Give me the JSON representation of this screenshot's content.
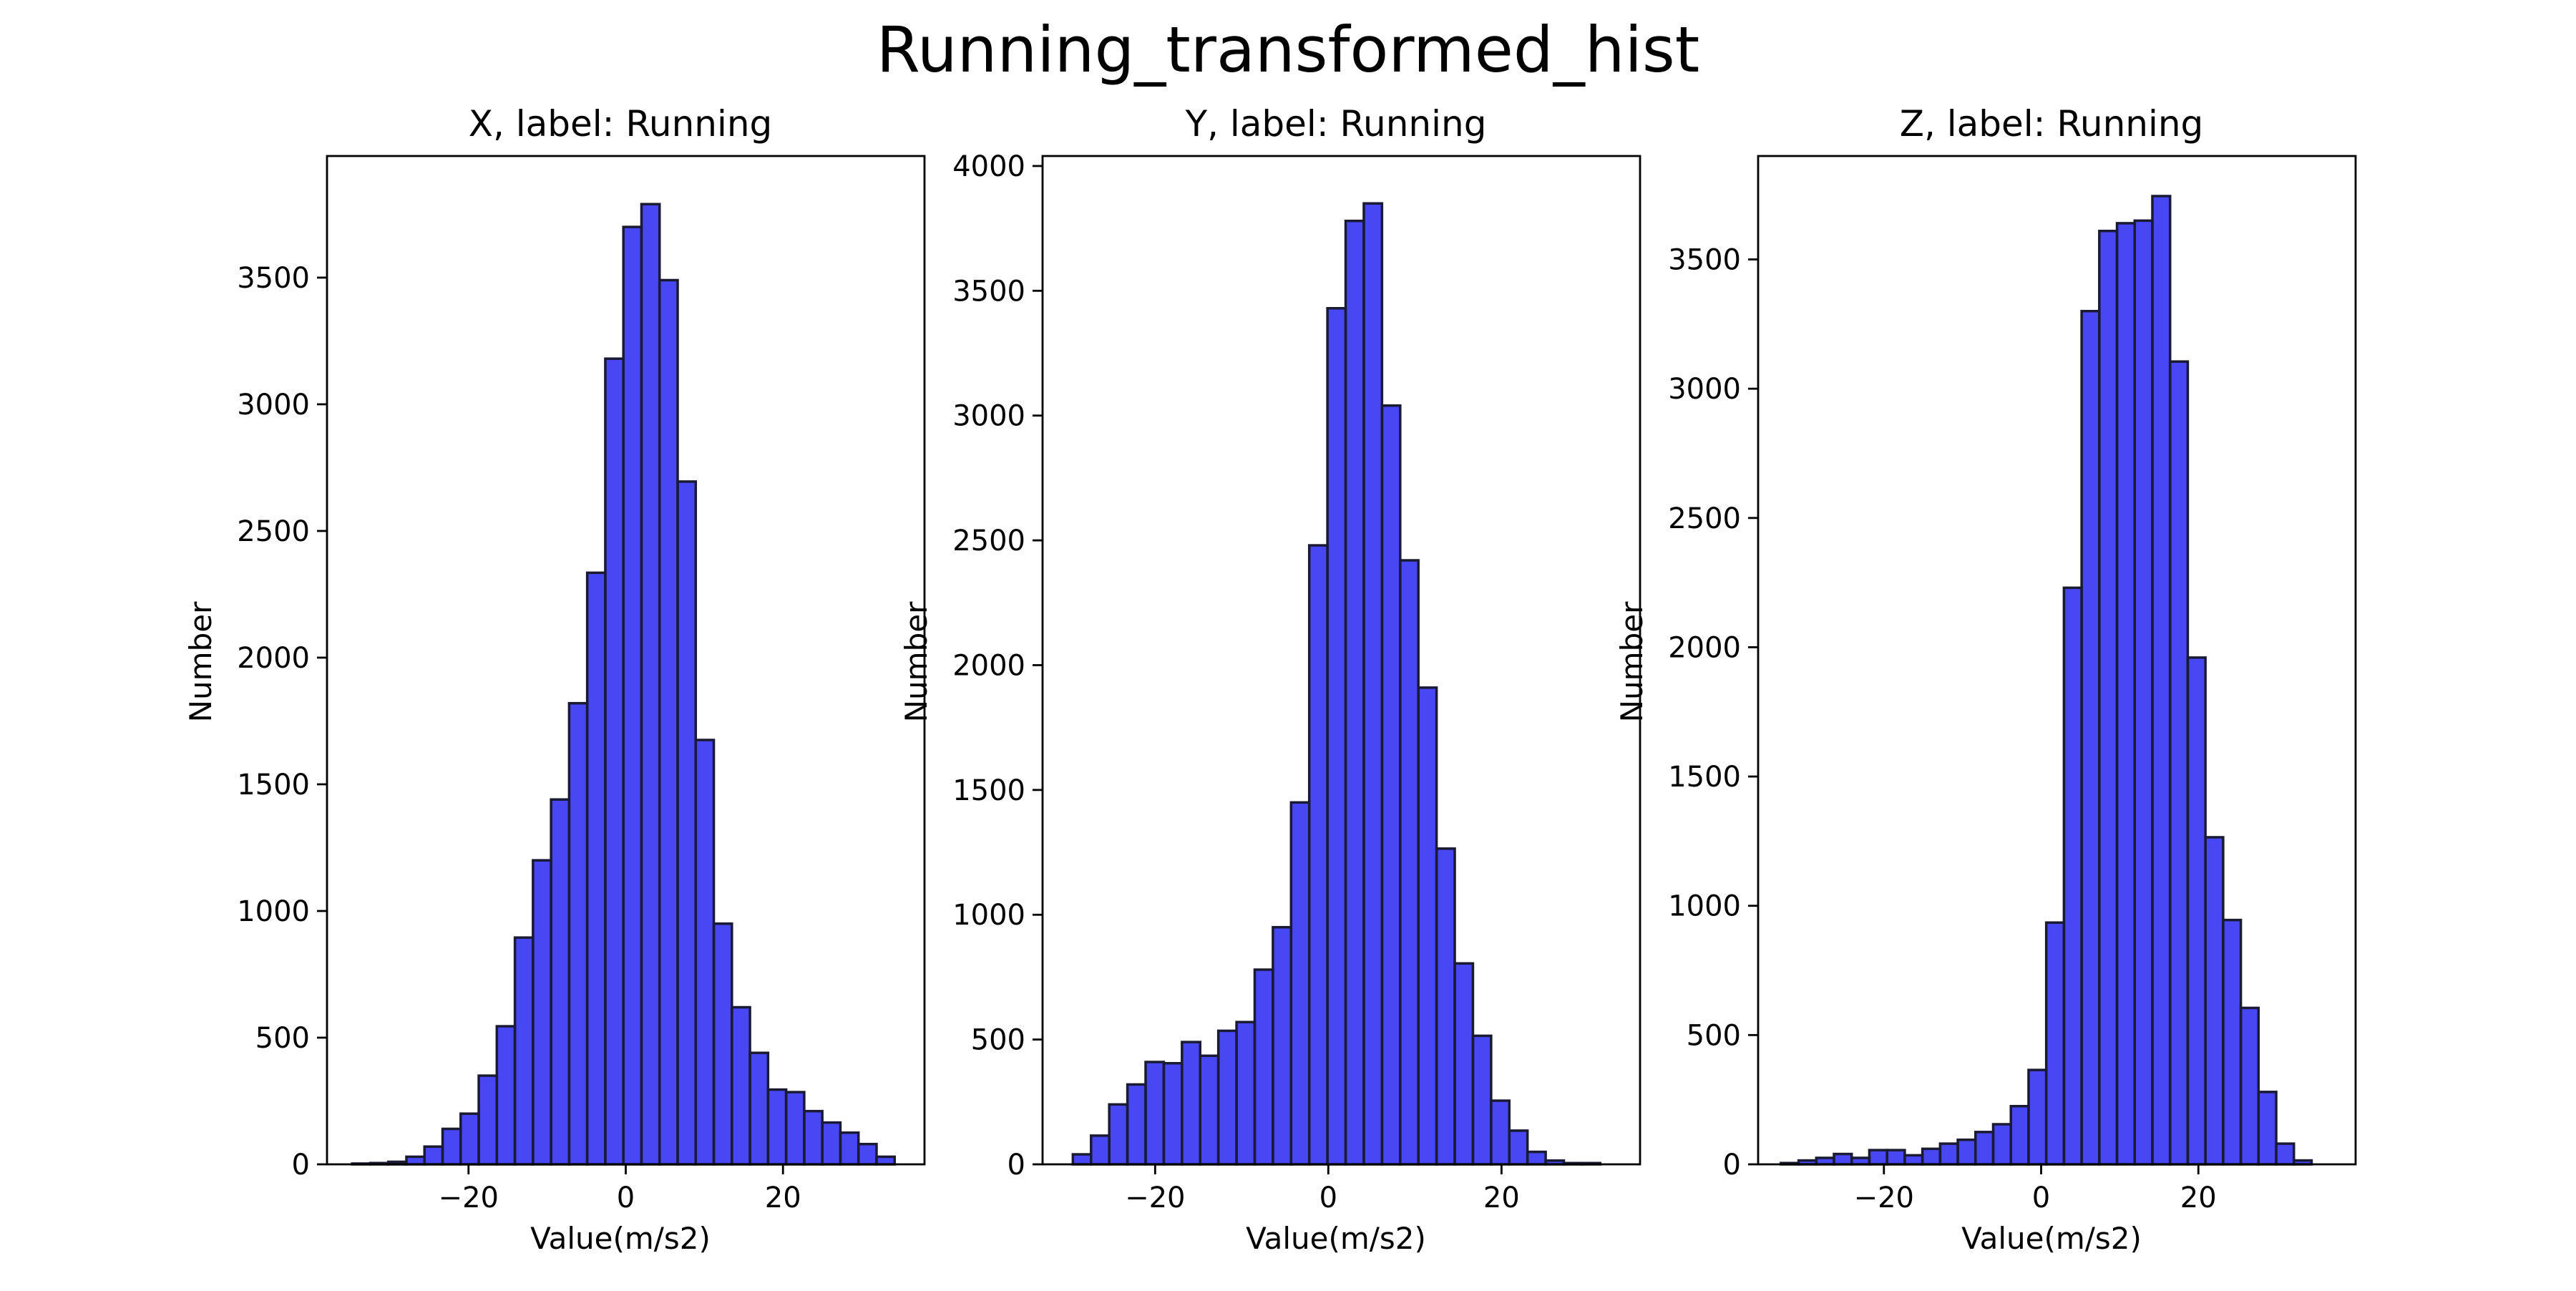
{
  "figure": {
    "title": "Running_transformed_hist"
  },
  "style": {
    "bar_fill": "#0000ee",
    "bar_opacity": 0.72,
    "bar_edge": "#1a1a33",
    "axis_color": "#000000"
  },
  "chart_data": [
    {
      "type": "bar",
      "title": "X, label: Running",
      "xlabel": "Value(m/s2)",
      "ylabel": "Number",
      "xlim": [
        -38,
        38
      ],
      "ylim": [
        0,
        3980
      ],
      "xticks": [
        -20,
        0,
        20
      ],
      "xtick_labels": [
        "−20",
        "0",
        "20"
      ],
      "yticks": [
        0,
        500,
        1000,
        1500,
        2000,
        2500,
        3000,
        3500
      ],
      "ytick_labels": [
        "0",
        "500",
        "1000",
        "1500",
        "2000",
        "2500",
        "3000",
        "3500"
      ],
      "bin_start": -34.8,
      "bin_width": 2.3,
      "values": [
        3,
        5,
        10,
        30,
        70,
        140,
        200,
        350,
        545,
        895,
        1200,
        1440,
        1820,
        2335,
        3180,
        3700,
        3790,
        3490,
        2695,
        1675,
        950,
        620,
        440,
        295,
        285,
        210,
        165,
        125,
        80,
        30
      ]
    },
    {
      "type": "bar",
      "title": "Y, label: Running",
      "xlabel": "Value(m/s2)",
      "ylabel": "Number",
      "xlim": [
        -33,
        36
      ],
      "ylim": [
        0,
        4040
      ],
      "xticks": [
        -20,
        0,
        20
      ],
      "xtick_labels": [
        "−20",
        "0",
        "20"
      ],
      "yticks": [
        0,
        500,
        1000,
        1500,
        2000,
        2500,
        3000,
        3500,
        4000
      ],
      "ytick_labels": [
        "0",
        "500",
        "1000",
        "1500",
        "2000",
        "2500",
        "3000",
        "3500",
        "4000"
      ],
      "bin_start": -29.5,
      "bin_width": 2.1,
      "values": [
        40,
        115,
        240,
        320,
        410,
        405,
        490,
        435,
        535,
        570,
        780,
        950,
        1450,
        2480,
        3430,
        3780,
        3850,
        3040,
        2420,
        1910,
        1265,
        805,
        515,
        255,
        135,
        50,
        15,
        5,
        5
      ]
    },
    {
      "type": "bar",
      "title": "Z, label: Running",
      "xlabel": "Value(m/s2)",
      "ylabel": "Number",
      "xlim": [
        -36,
        40
      ],
      "ylim": [
        0,
        3900
      ],
      "xticks": [
        -20,
        0,
        20
      ],
      "xtick_labels": [
        "−20",
        "0",
        "20"
      ],
      "yticks": [
        0,
        500,
        1000,
        1500,
        2000,
        2500,
        3000,
        3500
      ],
      "ytick_labels": [
        "0",
        "500",
        "1000",
        "1500",
        "2000",
        "2500",
        "3000",
        "3500"
      ],
      "bin_start": -33.1,
      "bin_width": 2.25,
      "values": [
        5,
        15,
        25,
        40,
        25,
        55,
        55,
        35,
        60,
        80,
        95,
        125,
        155,
        225,
        365,
        935,
        2230,
        3300,
        3610,
        3640,
        3650,
        3745,
        3105,
        1960,
        1265,
        945,
        605,
        280,
        80,
        15
      ]
    }
  ]
}
